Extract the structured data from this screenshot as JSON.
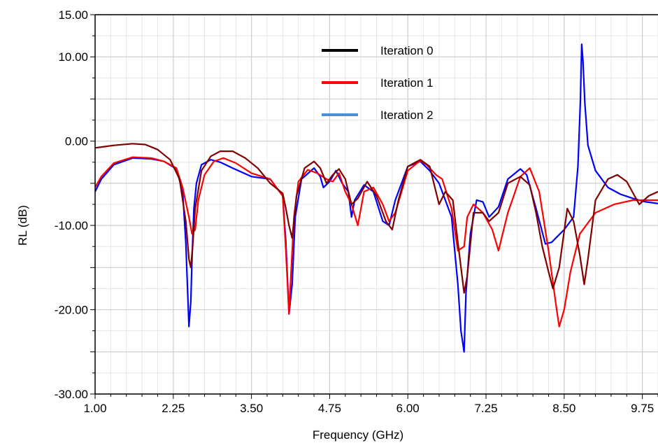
{
  "chart_data": {
    "type": "line",
    "title": "",
    "xlabel": "Frequency (GHz)",
    "ylabel": "RL (dB)",
    "xlim": [
      1.0,
      10.0
    ],
    "ylim": [
      -30.0,
      15.0
    ],
    "xticks": [
      1.0,
      2.25,
      3.5,
      4.75,
      6.0,
      7.25,
      8.5,
      9.75
    ],
    "xtick_labels": [
      "1.00",
      "2.25",
      "3.50",
      "4.75",
      "6.00",
      "7.25",
      "8.50",
      "9.75"
    ],
    "yticks": [
      15,
      10,
      0,
      -10,
      -20,
      -30
    ],
    "ytick_labels": [
      "15.00",
      "10.00",
      "0.00",
      "-10.00",
      "-20.00",
      "-30.00"
    ],
    "grid": true,
    "legend_position": "top-center",
    "legend": [
      {
        "name": "Iteration 0",
        "color": "#000000"
      },
      {
        "name": "Iteration 1",
        "color": "#ff0000"
      },
      {
        "name": "Iteration 2",
        "color": "#4a90d9"
      }
    ],
    "series": [
      {
        "name": "Iteration 2",
        "color": "#0000ff",
        "x": [
          1.0,
          1.1,
          1.3,
          1.6,
          1.9,
          2.1,
          2.3,
          2.4,
          2.45,
          2.5,
          2.53,
          2.55,
          2.58,
          2.62,
          2.7,
          2.85,
          3.0,
          3.2,
          3.5,
          3.8,
          4.0,
          4.05,
          4.1,
          4.15,
          4.2,
          4.3,
          4.5,
          4.6,
          4.65,
          4.75,
          4.85,
          4.95,
          5.05,
          5.1,
          5.15,
          5.3,
          5.45,
          5.6,
          5.7,
          5.8,
          6.0,
          6.2,
          6.35,
          6.5,
          6.7,
          6.8,
          6.85,
          6.9,
          6.93,
          7.0,
          7.1,
          7.2,
          7.3,
          7.45,
          7.6,
          7.8,
          7.9,
          8.05,
          8.2,
          8.3,
          8.5,
          8.65,
          8.72,
          8.76,
          8.78,
          8.8,
          8.83,
          8.88,
          9.0,
          9.2,
          9.4,
          9.6,
          9.8,
          10.0
        ],
        "values": [
          -6.0,
          -4.5,
          -2.8,
          -2.0,
          -2.1,
          -2.4,
          -3.3,
          -6.0,
          -12.0,
          -22.0,
          -19.0,
          -14.0,
          -8.0,
          -5.0,
          -2.8,
          -2.2,
          -2.5,
          -3.2,
          -4.2,
          -4.5,
          -6.5,
          -12.0,
          -20.5,
          -17.0,
          -9.0,
          -4.5,
          -3.2,
          -4.2,
          -5.5,
          -4.8,
          -3.5,
          -5.0,
          -6.0,
          -9.0,
          -7.0,
          -5.2,
          -6.0,
          -9.5,
          -10.0,
          -7.0,
          -3.0,
          -2.4,
          -3.5,
          -5.0,
          -9.0,
          -17.0,
          -22.5,
          -25.0,
          -18.0,
          -11.0,
          -7.0,
          -7.2,
          -9.0,
          -7.8,
          -4.5,
          -3.3,
          -4.0,
          -8.0,
          -12.2,
          -12.0,
          -10.5,
          -9.0,
          -3.0,
          5.0,
          11.5,
          9.5,
          4.5,
          -0.5,
          -3.5,
          -5.5,
          -6.3,
          -6.8,
          -7.2,
          -7.4
        ]
      },
      {
        "name": "Iteration 1",
        "color": "#ff0000",
        "x": [
          1.0,
          1.1,
          1.3,
          1.6,
          1.9,
          2.1,
          2.3,
          2.4,
          2.5,
          2.55,
          2.6,
          2.65,
          2.75,
          2.9,
          3.05,
          3.25,
          3.5,
          3.8,
          4.0,
          4.05,
          4.1,
          4.13,
          4.18,
          4.25,
          4.4,
          4.55,
          4.7,
          4.8,
          4.9,
          5.0,
          5.1,
          5.2,
          5.3,
          5.45,
          5.6,
          5.7,
          5.8,
          6.0,
          6.2,
          6.3,
          6.45,
          6.55,
          6.7,
          6.8,
          6.9,
          6.95,
          7.05,
          7.2,
          7.35,
          7.45,
          7.6,
          7.8,
          7.95,
          8.1,
          8.25,
          8.38,
          8.42,
          8.5,
          8.6,
          8.75,
          9.0,
          9.3,
          9.6,
          9.8,
          10.0
        ],
        "values": [
          -5.5,
          -4.2,
          -2.6,
          -1.9,
          -2.0,
          -2.4,
          -3.2,
          -5.5,
          -9.0,
          -11.0,
          -10.5,
          -7.0,
          -4.0,
          -2.4,
          -2.0,
          -2.6,
          -3.8,
          -4.5,
          -6.5,
          -13.0,
          -20.5,
          -16.0,
          -9.0,
          -4.8,
          -3.4,
          -3.8,
          -4.5,
          -4.8,
          -3.8,
          -6.0,
          -7.5,
          -10.0,
          -6.0,
          -5.5,
          -7.5,
          -9.5,
          -8.5,
          -3.5,
          -2.3,
          -2.8,
          -4.0,
          -4.5,
          -8.0,
          -13.0,
          -12.5,
          -9.0,
          -7.5,
          -8.5,
          -10.5,
          -13.0,
          -8.5,
          -4.2,
          -3.2,
          -6.0,
          -13.0,
          -20.0,
          -22.0,
          -20.0,
          -15.5,
          -11.0,
          -8.5,
          -7.5,
          -7.0,
          -7.0,
          -7.0
        ]
      },
      {
        "name": "Iteration 0",
        "color": "#800000",
        "x": [
          1.0,
          1.1,
          1.3,
          1.6,
          1.8,
          2.0,
          2.2,
          2.35,
          2.45,
          2.5,
          2.53,
          2.56,
          2.6,
          2.7,
          2.85,
          3.0,
          3.2,
          3.4,
          3.6,
          3.8,
          4.0,
          4.05,
          4.1,
          4.15,
          4.22,
          4.35,
          4.5,
          4.6,
          4.7,
          4.8,
          4.9,
          5.0,
          5.1,
          5.2,
          5.35,
          5.5,
          5.65,
          5.75,
          5.85,
          6.0,
          6.2,
          6.35,
          6.5,
          6.6,
          6.72,
          6.8,
          6.9,
          6.95,
          7.05,
          7.2,
          7.3,
          7.45,
          7.6,
          7.8,
          7.95,
          8.05,
          8.15,
          8.25,
          8.32,
          8.42,
          8.55,
          8.65,
          8.75,
          8.82,
          8.88,
          9.0,
          9.2,
          9.35,
          9.5,
          9.7,
          9.85,
          10.0
        ],
        "values": [
          -0.8,
          -0.7,
          -0.5,
          -0.3,
          -0.4,
          -1.0,
          -2.2,
          -4.5,
          -9.5,
          -14.0,
          -15.0,
          -12.5,
          -8.0,
          -3.5,
          -1.8,
          -1.2,
          -1.2,
          -2.0,
          -3.2,
          -5.0,
          -6.2,
          -8.0,
          -10.0,
          -11.5,
          -6.5,
          -3.2,
          -2.4,
          -3.2,
          -5.0,
          -4.0,
          -3.3,
          -4.5,
          -7.5,
          -6.8,
          -4.8,
          -6.5,
          -9.5,
          -10.5,
          -7.0,
          -3.0,
          -2.2,
          -3.0,
          -7.5,
          -6.0,
          -7.0,
          -12.0,
          -18.0,
          -16.0,
          -8.5,
          -8.5,
          -9.5,
          -8.5,
          -5.0,
          -4.2,
          -5.2,
          -8.5,
          -12.5,
          -15.5,
          -17.5,
          -15.0,
          -8.0,
          -9.5,
          -13.5,
          -17.0,
          -14.0,
          -7.0,
          -4.5,
          -4.0,
          -4.8,
          -7.5,
          -6.5,
          -6.0
        ]
      }
    ]
  }
}
